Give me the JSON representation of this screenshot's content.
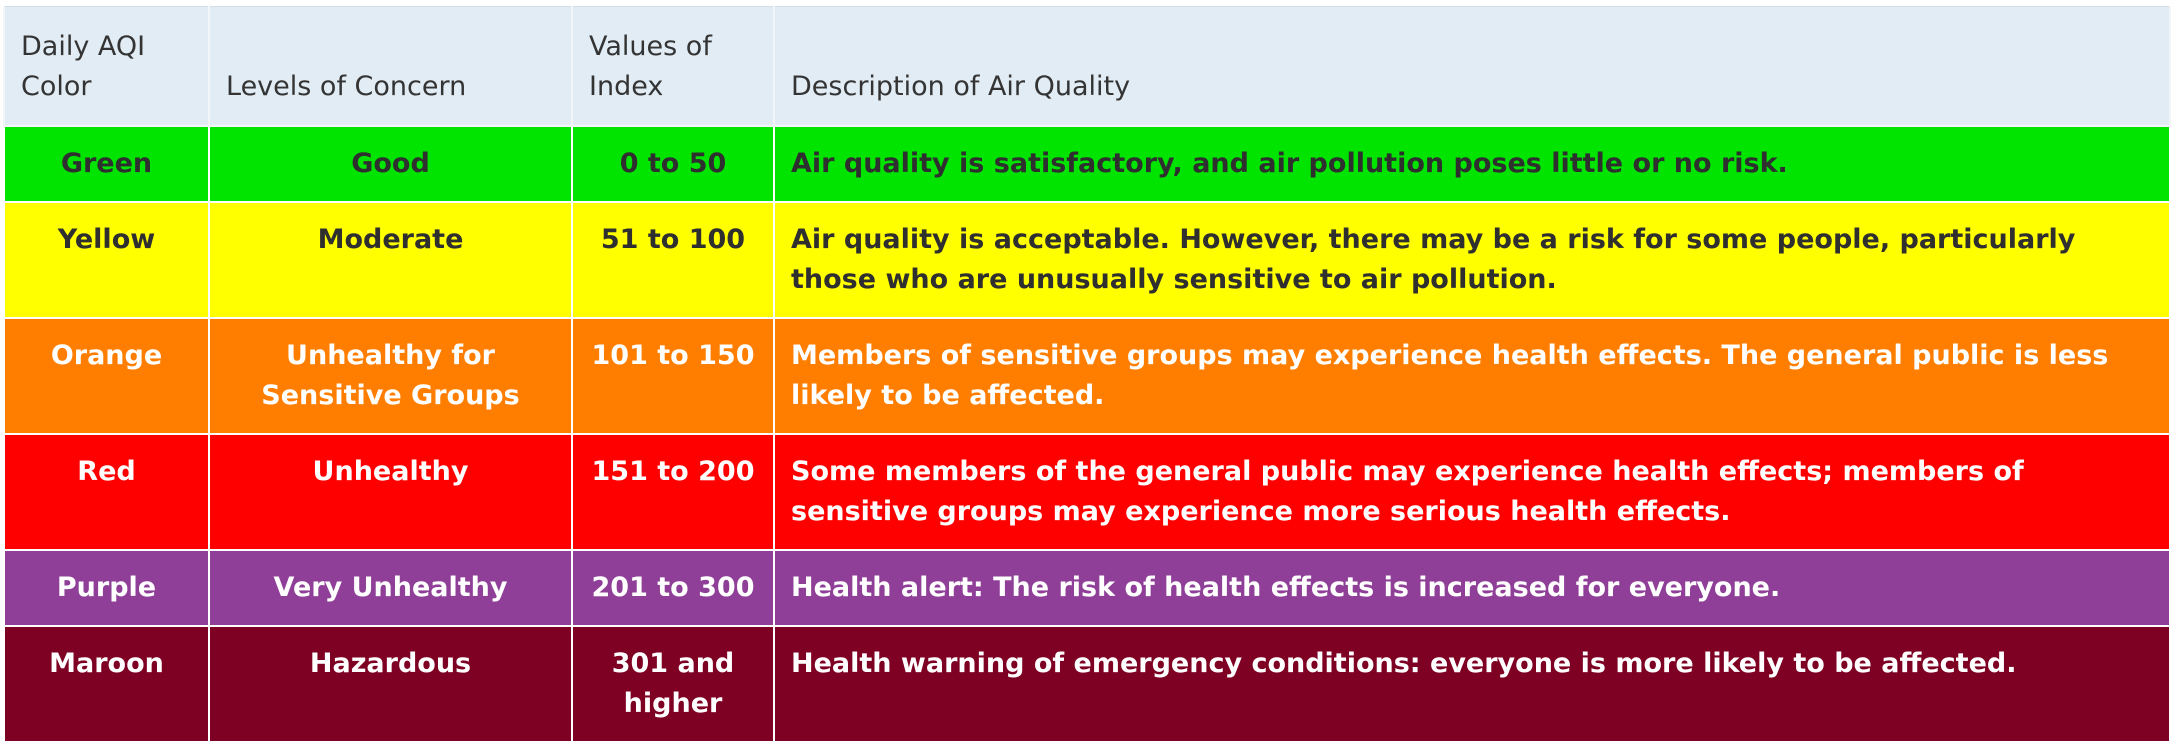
{
  "headers": {
    "color": "Daily AQI Color",
    "concern": "Levels of Concern",
    "values": "Values of Index",
    "description": "Description of Air Quality"
  },
  "rows": [
    {
      "color": "Green",
      "concern": "Good",
      "values": "0 to 50",
      "description": "Air quality is satisfactory, and air pollution poses little or no risk.",
      "bg": "#00e400"
    },
    {
      "color": "Yellow",
      "concern": "Moderate",
      "values": "51 to 100",
      "description": "Air quality is acceptable. However, there may be a risk for some people, particularly those who are unusually sensitive to air pollution.",
      "bg": "#ffff00"
    },
    {
      "color": "Orange",
      "concern": "Unhealthy for Sensitive Groups",
      "values": "101 to 150",
      "description": "Members of sensitive groups may experience health effects. The general public is less likely to be affected.",
      "bg": "#ff7e00"
    },
    {
      "color": "Red",
      "concern": "Unhealthy",
      "values": "151 to 200",
      "description": "Some members of the general public may experience health effects; members of sensitive groups may experience more serious health effects.",
      "bg": "#ff0000"
    },
    {
      "color": "Purple",
      "concern": "Very Unhealthy",
      "values": "201 to 300",
      "description": "Health alert: The risk of health effects is increased for everyone.",
      "bg": "#8f3f97"
    },
    {
      "color": "Maroon",
      "concern": "Hazardous",
      "values": "301 and higher",
      "description": "Health warning of emergency conditions: everyone is more likely to be affected.",
      "bg": "#7e0023"
    }
  ]
}
